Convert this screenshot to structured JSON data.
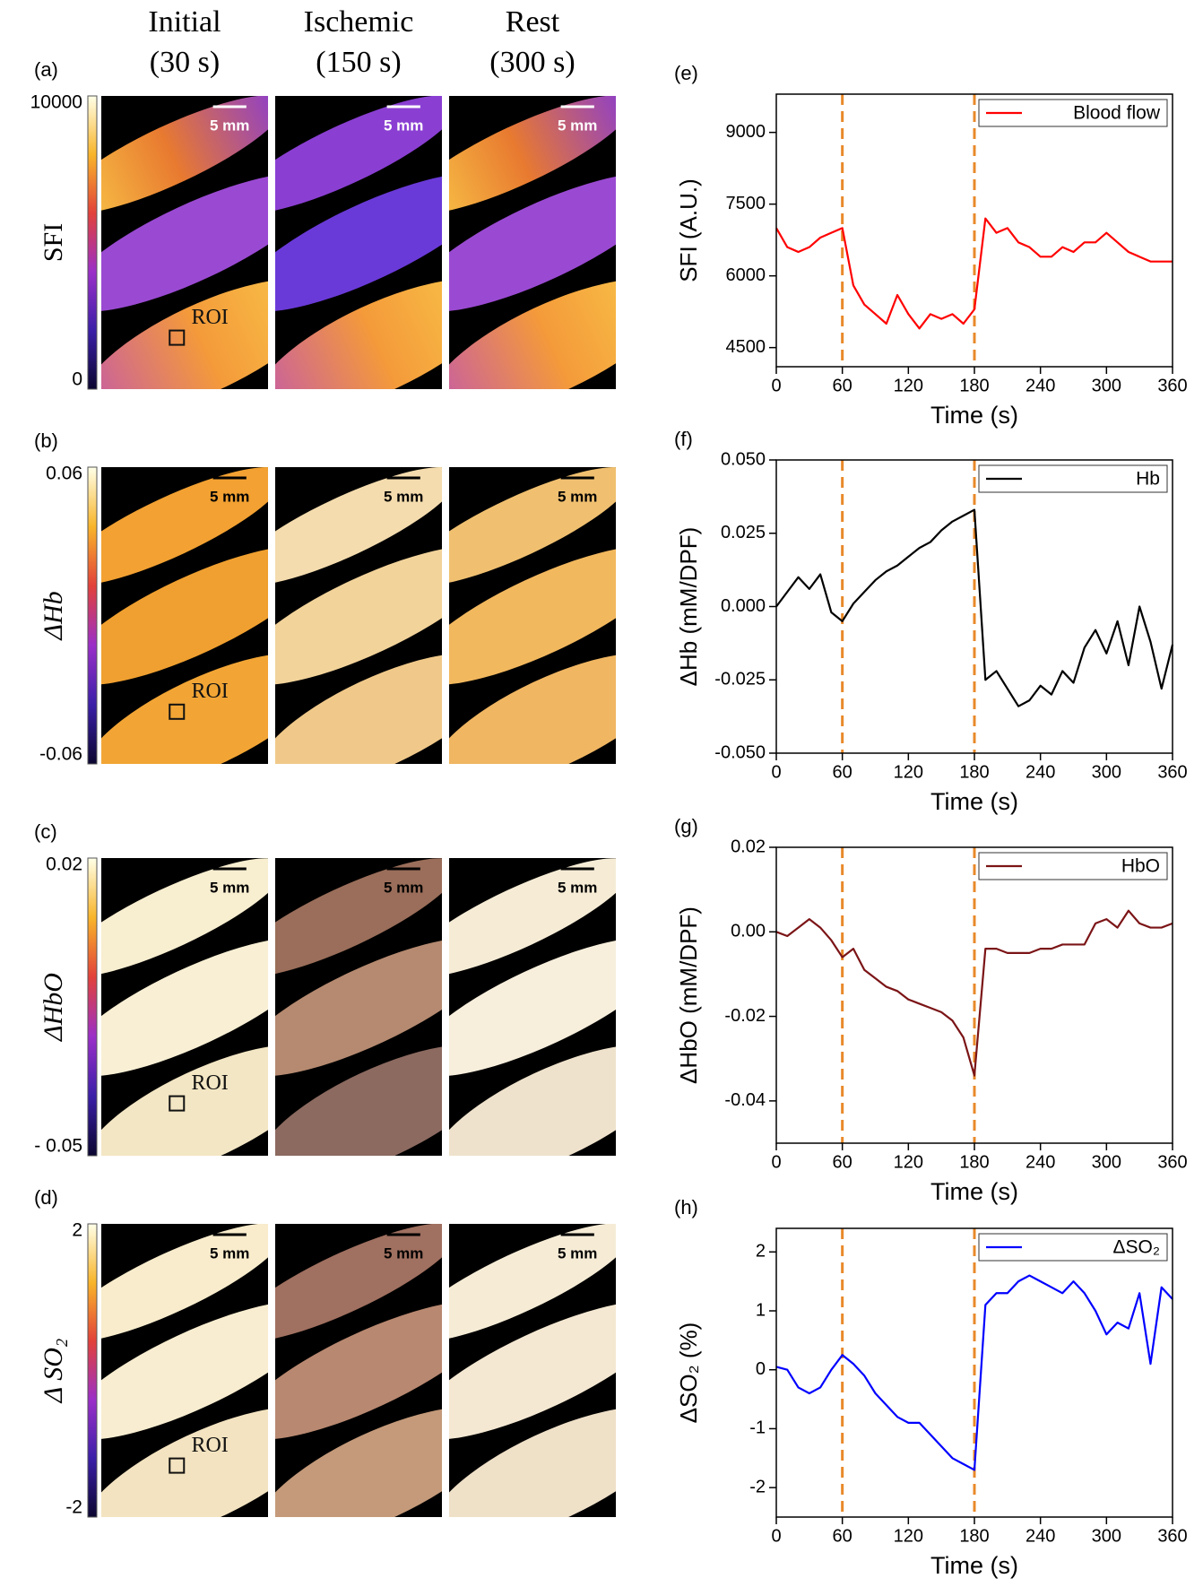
{
  "images": {
    "columns": [
      {
        "title": "Initial",
        "time": "(30 s)"
      },
      {
        "title": "Ischemic",
        "time": "(150 s)"
      },
      {
        "title": "Rest",
        "time": "(300 s)"
      }
    ],
    "rows": [
      {
        "label": "(a)",
        "quantity": "SFI",
        "max": "10000",
        "min": "0",
        "scale_bar": "5 mm",
        "roi": "ROI"
      },
      {
        "label": "(b)",
        "quantity": "ΔHb",
        "max": "0.06",
        "min": "-0.06",
        "scale_bar": "5 mm",
        "roi": "ROI"
      },
      {
        "label": "(c)",
        "quantity": "ΔHbO",
        "max": "0.02",
        "min": "- 0.05",
        "scale_bar": "5 mm",
        "roi": "ROI"
      },
      {
        "label": "(d)",
        "quantity": "Δ SO₂",
        "max": "2",
        "min": "-2",
        "scale_bar": "5 mm",
        "roi": "ROI"
      }
    ]
  },
  "chart_data": [
    {
      "type": "line",
      "panel_label": "(e)",
      "x_label": "Time (s)",
      "y_label": "SFI (A.U.)",
      "xlim": [
        0,
        360
      ],
      "xticks": [
        0,
        60,
        120,
        180,
        240,
        300,
        360
      ],
      "ylim": [
        4100,
        9800
      ],
      "yticks": [
        4500,
        6000,
        7500,
        9000
      ],
      "markers": [
        60,
        180
      ],
      "marker_color": "#e8892a",
      "x": [
        0,
        10,
        20,
        30,
        40,
        50,
        60,
        70,
        80,
        90,
        100,
        110,
        120,
        130,
        140,
        150,
        160,
        170,
        180,
        190,
        200,
        210,
        220,
        230,
        240,
        250,
        260,
        270,
        280,
        290,
        300,
        310,
        320,
        330,
        340,
        350,
        360
      ],
      "series": [
        {
          "name": "Blood flow",
          "color": "#ff0000",
          "values": [
            7000,
            6600,
            6500,
            6600,
            6800,
            6900,
            7000,
            5800,
            5400,
            5200,
            5000,
            5600,
            5200,
            4900,
            5200,
            5100,
            5200,
            5000,
            5300,
            7200,
            6900,
            7000,
            6700,
            6600,
            6400,
            6400,
            6600,
            6500,
            6700,
            6700,
            6900,
            6700,
            6500,
            6400,
            6300,
            6300,
            6300
          ]
        }
      ]
    },
    {
      "type": "line",
      "panel_label": "(f)",
      "x_label": "Time (s)",
      "y_label": "ΔHb (mM/DPF)",
      "xlim": [
        0,
        360
      ],
      "xticks": [
        0,
        60,
        120,
        180,
        240,
        300,
        360
      ],
      "ylim": [
        -0.05,
        0.05
      ],
      "yticks": [
        {
          "value": -0.05,
          "label": "-0.050"
        },
        {
          "value": -0.025,
          "label": "-0.025"
        },
        {
          "value": 0,
          "label": "0.000"
        },
        {
          "value": 0.025,
          "label": "0.025"
        },
        {
          "value": 0.05,
          "label": "0.050"
        }
      ],
      "markers": [
        60,
        180
      ],
      "marker_color": "#e8892a",
      "x": [
        0,
        10,
        20,
        30,
        40,
        50,
        60,
        70,
        80,
        90,
        100,
        110,
        120,
        130,
        140,
        150,
        160,
        170,
        180,
        190,
        200,
        210,
        220,
        230,
        240,
        250,
        260,
        270,
        280,
        290,
        300,
        310,
        320,
        330,
        340,
        350,
        360
      ],
      "series": [
        {
          "name": "Hb",
          "color": "#000000",
          "values": [
            0,
            0.005,
            0.01,
            0.006,
            0.011,
            -0.002,
            -0.005,
            0.001,
            0.005,
            0.009,
            0.012,
            0.014,
            0.017,
            0.02,
            0.022,
            0.026,
            0.029,
            0.031,
            0.033,
            -0.025,
            -0.022,
            -0.028,
            -0.034,
            -0.032,
            -0.027,
            -0.03,
            -0.022,
            -0.026,
            -0.014,
            -0.008,
            -0.016,
            -0.005,
            -0.02,
            0,
            -0.012,
            -0.028,
            -0.013
          ]
        }
      ]
    },
    {
      "type": "line",
      "panel_label": "(g)",
      "x_label": "Time (s)",
      "y_label": "ΔHbO (mM/DPF)",
      "xlim": [
        0,
        360
      ],
      "xticks": [
        0,
        60,
        120,
        180,
        240,
        300,
        360
      ],
      "ylim": [
        -0.05,
        0.02
      ],
      "yticks": [
        -0.04,
        -0.02,
        {
          "value": 0,
          "label": "0.00"
        },
        0.02
      ],
      "markers": [
        60,
        180
      ],
      "marker_color": "#e8892a",
      "x": [
        0,
        10,
        20,
        30,
        40,
        50,
        60,
        70,
        80,
        90,
        100,
        110,
        120,
        130,
        140,
        150,
        160,
        170,
        180,
        190,
        200,
        210,
        220,
        230,
        240,
        250,
        260,
        270,
        280,
        290,
        300,
        310,
        320,
        330,
        340,
        350,
        360
      ],
      "series": [
        {
          "name": "HbO",
          "color": "#7b1416",
          "values": [
            0,
            -0.001,
            0.001,
            0.003,
            0.001,
            -0.002,
            -0.006,
            -0.004,
            -0.009,
            -0.011,
            -0.013,
            -0.014,
            -0.016,
            -0.017,
            -0.018,
            -0.019,
            -0.021,
            -0.025,
            -0.034,
            -0.004,
            -0.004,
            -0.005,
            -0.005,
            -0.005,
            -0.004,
            -0.004,
            -0.003,
            -0.003,
            -0.003,
            0.002,
            0.003,
            0.001,
            0.005,
            0.002,
            0.001,
            0.001,
            0.002
          ]
        }
      ]
    },
    {
      "type": "line",
      "panel_label": "(h)",
      "x_label": "Time (s)",
      "y_label": "ΔSO₂ (%)",
      "xlim": [
        0,
        360
      ],
      "xticks": [
        0,
        60,
        120,
        180,
        240,
        300,
        360
      ],
      "ylim": [
        -2.5,
        2.4
      ],
      "yticks": [
        -2,
        -1,
        0,
        1,
        2
      ],
      "markers": [
        60,
        180
      ],
      "marker_color": "#e8892a",
      "x": [
        0,
        10,
        20,
        30,
        40,
        50,
        60,
        70,
        80,
        90,
        100,
        110,
        120,
        130,
        140,
        150,
        160,
        170,
        180,
        190,
        200,
        210,
        220,
        230,
        240,
        250,
        260,
        270,
        280,
        290,
        300,
        310,
        320,
        330,
        340,
        350,
        360
      ],
      "series": [
        {
          "name": "ΔSO₂",
          "color": "#0000ff",
          "values": [
            0.05,
            0,
            -0.3,
            -0.4,
            -0.3,
            0,
            0.25,
            0.1,
            -0.1,
            -0.4,
            -0.6,
            -0.8,
            -0.9,
            -0.9,
            -1.1,
            -1.3,
            -1.5,
            -1.6,
            -1.7,
            1.1,
            1.3,
            1.3,
            1.5,
            1.6,
            1.5,
            1.4,
            1.3,
            1.5,
            1.3,
            1.0,
            0.6,
            0.8,
            0.7,
            1.3,
            0.1,
            1.4,
            1.2
          ]
        }
      ]
    }
  ]
}
